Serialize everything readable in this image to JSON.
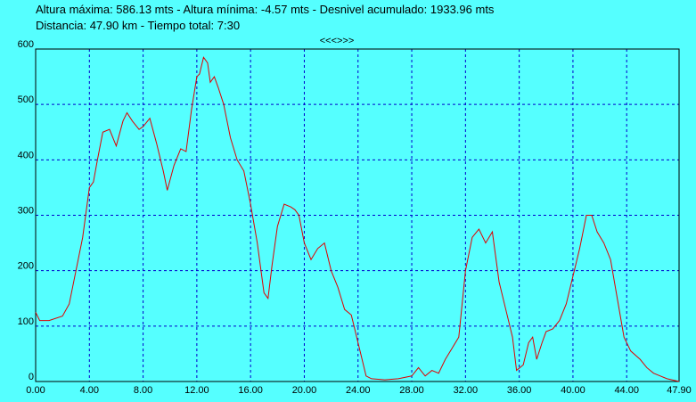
{
  "chart_data": {
    "type": "line",
    "header_lines": [
      "Altura máxima: 586.13 mts - Altura mínima: -4.57 mts - Desnivel acumulado: 1933.96 mts",
      "Distancia: 47.90 km - Tiempo total: 7:30"
    ],
    "nav": "<<<>>>",
    "x": [
      0,
      0.3,
      1,
      2,
      2.5,
      3,
      3.5,
      4,
      4.3,
      4.6,
      5,
      5.5,
      6,
      6.5,
      6.8,
      7.2,
      7.7,
      8,
      8.5,
      9,
      9.5,
      9.8,
      10.3,
      10.8,
      11.2,
      11.6,
      12,
      12.2,
      12.5,
      12.8,
      13,
      13.3,
      13.6,
      14,
      14.5,
      15,
      15.5,
      16,
      16.5,
      17,
      17.3,
      17.6,
      18,
      18.5,
      19,
      19.3,
      19.6,
      20,
      20.5,
      21,
      21.5,
      22,
      22.5,
      23,
      23.5,
      23.8,
      24.2,
      24.6,
      25,
      26,
      27,
      28,
      28.5,
      29,
      29.5,
      30,
      30.5,
      31,
      31.5,
      32,
      32.5,
      33,
      33.5,
      34,
      34.5,
      35,
      35.5,
      35.8,
      36.3,
      36.7,
      37,
      37.3,
      37.7,
      38,
      38.5,
      39,
      39.5,
      40,
      40.5,
      41,
      41.4,
      41.8,
      42.3,
      42.8,
      43.3,
      43.8,
      44.3,
      45,
      45.5,
      46,
      46.5,
      47,
      47.9
    ],
    "series": [
      {
        "color": "#e00000",
        "values": [
          125,
          110,
          110,
          118,
          140,
          200,
          260,
          350,
          360,
          400,
          450,
          455,
          425,
          470,
          485,
          470,
          455,
          460,
          475,
          430,
          380,
          345,
          390,
          420,
          415,
          490,
          550,
          555,
          585,
          575,
          540,
          550,
          530,
          500,
          440,
          400,
          380,
          320,
          250,
          160,
          150,
          210,
          280,
          320,
          315,
          310,
          300,
          250,
          220,
          240,
          250,
          200,
          170,
          130,
          120,
          90,
          50,
          10,
          5,
          3,
          5,
          10,
          25,
          10,
          20,
          15,
          40,
          60,
          80,
          200,
          260,
          275,
          250,
          270,
          180,
          130,
          80,
          20,
          30,
          70,
          80,
          40,
          70,
          90,
          95,
          110,
          140,
          190,
          240,
          300,
          300,
          270,
          250,
          220,
          150,
          80,
          55,
          40,
          25,
          15,
          10,
          5,
          0
        ]
      }
    ],
    "xlim": [
      0,
      47.9
    ],
    "xticks": [
      {
        "value": 0,
        "label": "0.00"
      },
      {
        "value": 4,
        "label": "4.00"
      },
      {
        "value": 8,
        "label": "8.00"
      },
      {
        "value": 12,
        "label": "12.00"
      },
      {
        "value": 16,
        "label": "16.00"
      },
      {
        "value": 20,
        "label": "20.00"
      },
      {
        "value": 24,
        "label": "24.00"
      },
      {
        "value": 28,
        "label": "28.00"
      },
      {
        "value": 32,
        "label": "32.00"
      },
      {
        "value": 36,
        "label": "36.00"
      },
      {
        "value": 40,
        "label": "40.00"
      },
      {
        "value": 44,
        "label": "44.00"
      },
      {
        "value": 47.9,
        "label": "47.90"
      }
    ],
    "ylim": [
      0,
      600
    ],
    "yticks": [
      0,
      100,
      200,
      300,
      400,
      500,
      600
    ],
    "grid": true
  }
}
